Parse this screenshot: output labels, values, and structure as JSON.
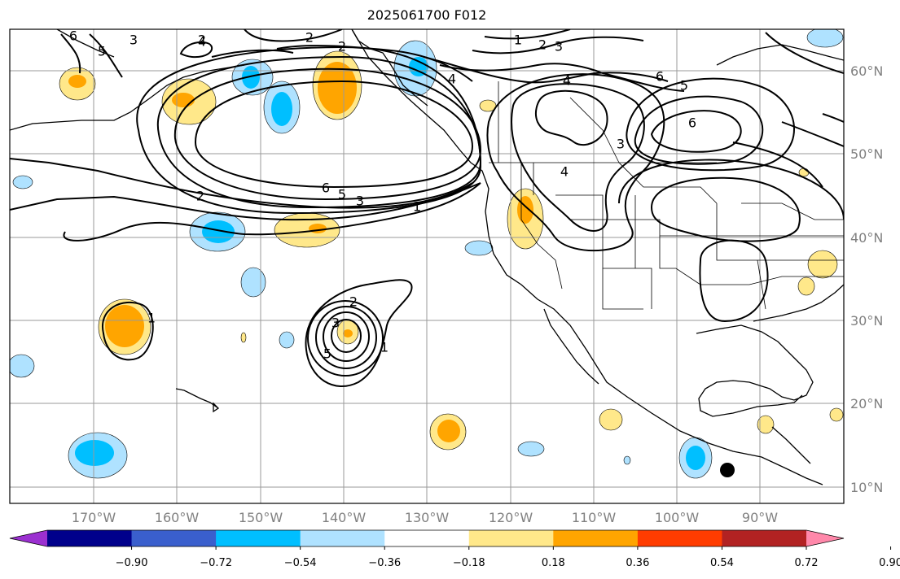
{
  "title": "2025061700 F012",
  "lon_labels": [
    "170°W",
    "160°W",
    "150°W",
    "140°W",
    "130°W",
    "120°W",
    "110°W",
    "100°W",
    "90°W"
  ],
  "lat_labels": [
    "60°N",
    "50°N",
    "40°N",
    "30°N",
    "20°N",
    "10°N"
  ],
  "colorbar": {
    "ticks": [
      "−0.90",
      "−0.72",
      "−0.54",
      "−0.36",
      "−0.18",
      "0.18",
      "0.36",
      "0.54",
      "0.72",
      "0.90"
    ],
    "colors": [
      "#9b30d0",
      "#00008b",
      "#3a5fcd",
      "#00bfff",
      "#afe2ff",
      "#ffffff",
      "#ffe88a",
      "#ffa500",
      "#ff3c00",
      "#b22222",
      "#ff88aa"
    ]
  },
  "contour_labels": [
    "2",
    "3",
    "4",
    "5",
    "6",
    "1",
    "2",
    "3",
    "4",
    "5",
    "6",
    "2",
    "6",
    "5",
    "3",
    "1",
    "4",
    "3",
    "2",
    "2",
    "1",
    "1",
    "2",
    "3",
    "4",
    "5",
    "6"
  ],
  "colors": {
    "lightblue": "#afe2ff",
    "blue": "#00bfff",
    "yellow": "#ffe88a",
    "orange": "#ffa500",
    "grid": "#9a9a9a",
    "land": "#000000"
  }
}
